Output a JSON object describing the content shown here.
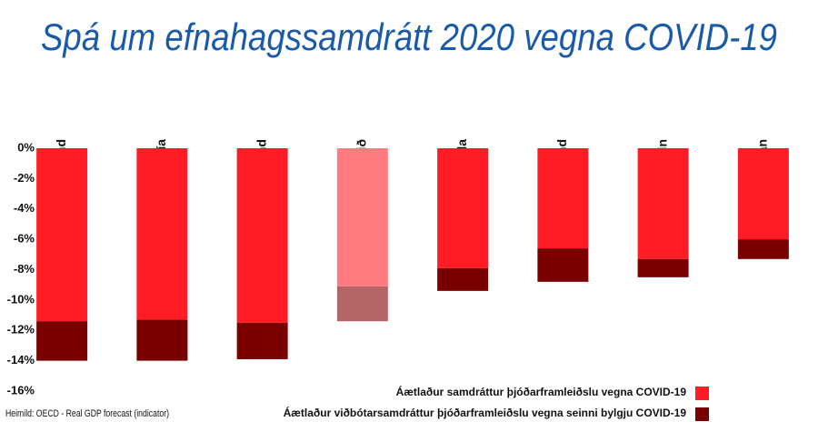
{
  "chart_data": {
    "type": "bar",
    "stacked": true,
    "title": "Spá um efnahagssamdrátt 2020 vegna COVID-19",
    "source": "Heimild: OECD - Real GDP forecast (indicator)",
    "categories": [
      "Frakkland",
      "Ítalía",
      "Bretland",
      "Evrusvæðið",
      "Kanada",
      "Þýskaland",
      "Bandaríkin",
      "Japan"
    ],
    "series": [
      {
        "name": "Áætlaður samdráttur þjóðarframleiðslu vegna COVID-19",
        "color": "#ff1c24",
        "point_colors": [
          "#ff1c24",
          "#ff1c24",
          "#ff1c24",
          "#ff7b80",
          "#ff1c24",
          "#ff1c24",
          "#ff1c24",
          "#ff1c24"
        ],
        "values": [
          -11.4,
          -11.3,
          -11.5,
          -9.1,
          -7.9,
          -6.6,
          -7.3,
          -6.0
        ]
      },
      {
        "name": "Áætlaður viðbótarsamdráttur þjóðarframleiðslu vegna seinni bylgju COVID-19",
        "color": "#7a0000",
        "point_colors": [
          "#7a0000",
          "#7a0000",
          "#7a0000",
          "#b56566",
          "#7a0000",
          "#7a0000",
          "#7a0000",
          "#7a0000"
        ],
        "values": [
          -2.6,
          -2.7,
          -2.4,
          -2.3,
          -1.5,
          -2.2,
          -1.2,
          -1.3
        ]
      }
    ],
    "ylim": [
      -16,
      0
    ],
    "yticks": [
      {
        "value": 0,
        "label": "0%"
      },
      {
        "value": -2,
        "label": "-2%"
      },
      {
        "value": -4,
        "label": "-4%"
      },
      {
        "value": -6,
        "label": "-6%"
      },
      {
        "value": -8,
        "label": "-8%"
      },
      {
        "value": -10,
        "label": "-10%"
      },
      {
        "value": -12,
        "label": "-12%"
      },
      {
        "value": -14,
        "label": "-14%"
      },
      {
        "value": -16,
        "label": "-16%"
      }
    ],
    "legend": "bottom-right"
  }
}
